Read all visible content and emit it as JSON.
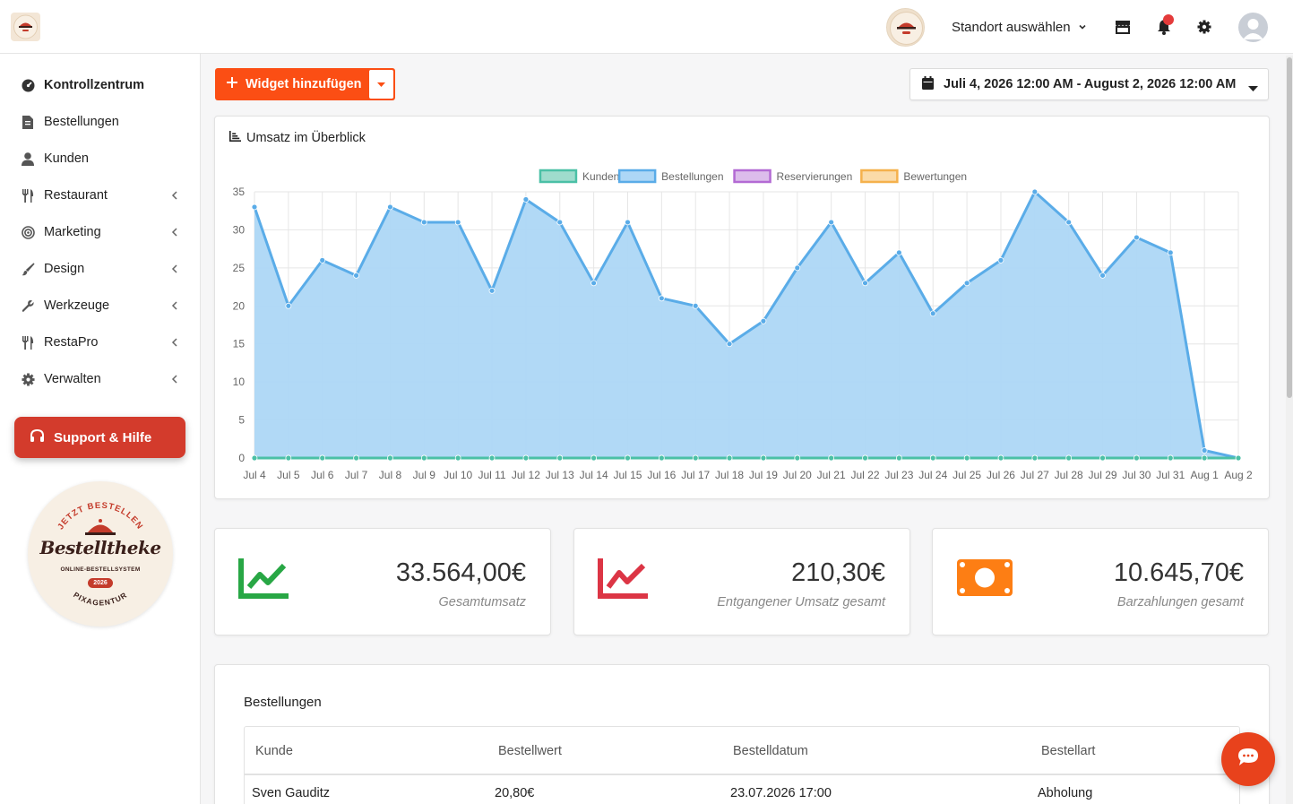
{
  "topbar": {
    "location_label": "Standort auswählen"
  },
  "sidebar": {
    "items": [
      {
        "label": "Kontrollzentrum",
        "icon": "dashboard-icon",
        "active": true
      },
      {
        "label": "Bestellungen",
        "icon": "receipt-icon"
      },
      {
        "label": "Kunden",
        "icon": "user-icon"
      },
      {
        "label": "Restaurant",
        "icon": "utensils-icon",
        "submenu": true
      },
      {
        "label": "Marketing",
        "icon": "target-icon",
        "submenu": true
      },
      {
        "label": "Design",
        "icon": "brush-icon",
        "submenu": true
      },
      {
        "label": "Werkzeuge",
        "icon": "wrench-icon",
        "submenu": true
      },
      {
        "label": "RestaPro",
        "icon": "utensils-icon",
        "submenu": true
      },
      {
        "label": "Verwalten",
        "icon": "gear-icon",
        "submenu": true
      }
    ],
    "support_label": "Support & Hilfe",
    "badge": {
      "top_text": "JETZT BESTELLEN",
      "name": "Bestelltheke",
      "subtitle": "ONLINE-BESTELLSYSTEM",
      "year": "2026",
      "bottom_text": "PIXAGENTUR"
    }
  },
  "toolbar": {
    "add_widget_label": "Widget hinzufügen",
    "date_range": "Juli 4, 2026 12:00 AM - August 2, 2026 12:00 AM"
  },
  "chart_widget": {
    "title": "Umsatz im Überblick"
  },
  "chart_data": {
    "type": "area",
    "title": "",
    "xlabel": "",
    "ylabel": "",
    "ylim": [
      0,
      35
    ],
    "yticks": [
      0,
      5,
      10,
      15,
      20,
      25,
      30,
      35
    ],
    "grid": true,
    "legend_position": "top",
    "categories": [
      "Jul 4",
      "Jul 5",
      "Jul 6",
      "Jul 7",
      "Jul 8",
      "Jul 9",
      "Jul 10",
      "Jul 11",
      "Jul 12",
      "Jul 13",
      "Jul 14",
      "Jul 15",
      "Jul 16",
      "Jul 17",
      "Jul 18",
      "Jul 19",
      "Jul 20",
      "Jul 21",
      "Jul 22",
      "Jul 23",
      "Jul 24",
      "Jul 25",
      "Jul 26",
      "Jul 27",
      "Jul 28",
      "Jul 29",
      "Jul 30",
      "Jul 31",
      "Aug 1",
      "Aug 2"
    ],
    "series": [
      {
        "name": "Kunden",
        "color": "#4bc0a6",
        "fill": "#9fdccd",
        "values": [
          0,
          0,
          0,
          0,
          0,
          0,
          0,
          0,
          0,
          0,
          0,
          0,
          0,
          0,
          0,
          0,
          0,
          0,
          0,
          0,
          0,
          0,
          0,
          0,
          0,
          0,
          0,
          0,
          0,
          0
        ]
      },
      {
        "name": "Bestellungen",
        "color": "#5aace8",
        "fill": "#add7f6",
        "values": [
          33,
          20,
          26,
          24,
          33,
          31,
          31,
          22,
          34,
          31,
          23,
          31,
          21,
          20,
          15,
          18,
          25,
          31,
          23,
          27,
          19,
          23,
          26,
          35,
          31,
          24,
          29,
          27,
          1,
          0
        ]
      },
      {
        "name": "Reservierungen",
        "color": "#b36ad4",
        "fill": "#dcbceb",
        "values": [
          0,
          0,
          0,
          0,
          0,
          0,
          0,
          0,
          0,
          0,
          0,
          0,
          0,
          0,
          0,
          0,
          0,
          0,
          0,
          0,
          0,
          0,
          0,
          0,
          0,
          0,
          0,
          0,
          0,
          0
        ]
      },
      {
        "name": "Bewertungen",
        "color": "#f5b14c",
        "fill": "#fbdba8",
        "values": [
          0,
          0,
          0,
          0,
          0,
          0,
          0,
          0,
          0,
          0,
          0,
          0,
          0,
          0,
          0,
          0,
          0,
          0,
          0,
          0,
          0,
          0,
          0,
          0,
          0,
          0,
          0,
          0,
          0,
          0
        ]
      }
    ]
  },
  "stats": [
    {
      "value": "33.564,00€",
      "label": "Gesamtumsatz",
      "icon": "chart-line-up-icon",
      "color": "#28a745"
    },
    {
      "value": "210,30€",
      "label": "Entgangener Umsatz gesamt",
      "icon": "chart-line-down-icon",
      "color": "#dc3545"
    },
    {
      "value": "10.645,70€",
      "label": "Barzahlungen gesamt",
      "icon": "money-bill-icon",
      "color": "#fd7e14"
    }
  ],
  "orders": {
    "title": "Bestellungen",
    "columns": [
      "Kunde",
      "Bestellwert",
      "Bestelldatum",
      "Bestellart"
    ],
    "rows": [
      [
        "Sven Gauditz",
        "20,80€",
        "23.07.2026 17:00",
        "Abholung"
      ]
    ]
  },
  "colors": {
    "accent": "#fb4e14",
    "support": "#d33b2c",
    "chat": "#e8421c"
  }
}
